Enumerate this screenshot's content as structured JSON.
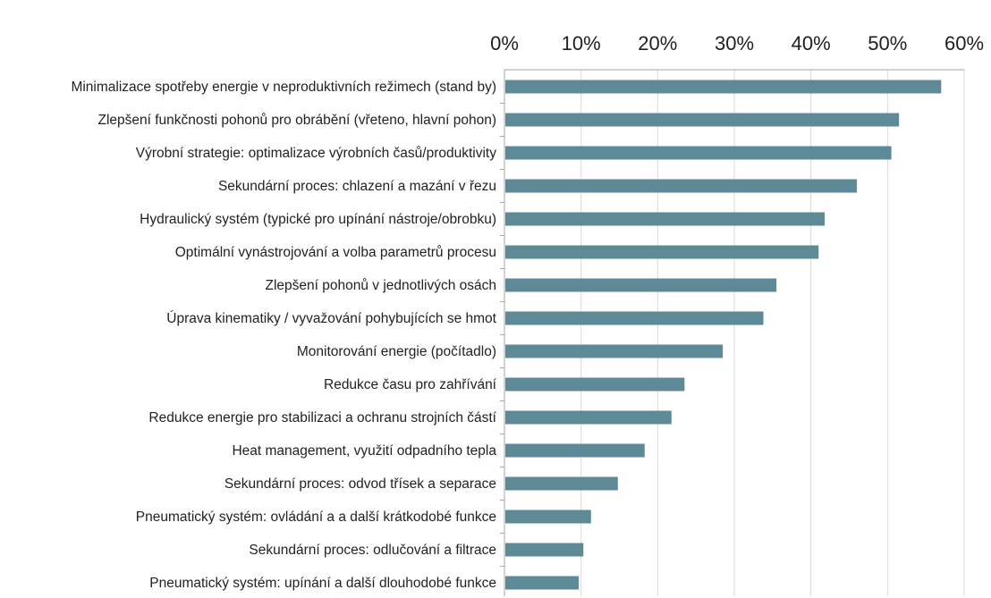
{
  "chart_data": {
    "type": "bar",
    "orientation": "horizontal",
    "title": "",
    "xlabel": "",
    "ylabel": "",
    "xlim": [
      0,
      60
    ],
    "x_ticks": [
      "0%",
      "10%",
      "20%",
      "30%",
      "40%",
      "50%",
      "60%"
    ],
    "x_tick_values": [
      0,
      10,
      20,
      30,
      40,
      50,
      60
    ],
    "x_axis_position": "top",
    "grid": true,
    "legend": "none",
    "categories": [
      "Minimalizace spotřeby energie v neproduktivních režimech (stand by)",
      "Zlepšení funkčnosti pohonů pro obrábění (vřeteno, hlavní pohon)",
      "Výrobní strategie: optimalizace výrobních časů/produktivity",
      "Sekundární proces: chlazení a mazání v řezu",
      "Hydraulický systém (typické pro upínání nástroje/obrobku)",
      "Optimální vynástrojování a volba parametrů procesu",
      "Zlepšení pohonů v jednotlivých osách",
      "Úprava kinematiky / vyvažování pohybujících se hmot",
      "Monitorování energie (počítadlo)",
      "Redukce času pro zahřívání",
      "Redukce energie pro stabilizaci a ochranu strojních částí",
      "Heat management, využití odpadního tepla",
      "Sekundární proces: odvod třísek a separace",
      "Pneumatický systém: ovládání a a další krátkodobé funkce",
      "Sekundární proces: odlučování a filtrace",
      "Pneumatický systém: upínání a další dlouhodobé funkce"
    ],
    "values": [
      57,
      51.5,
      50.5,
      46,
      41.8,
      41,
      35.5,
      33.8,
      28.5,
      23.5,
      21.8,
      18.3,
      14.8,
      11.3,
      10.3,
      9.7
    ],
    "colors": {
      "bar": "#5e8a98",
      "grid": "#d9d9d9",
      "axis": "#a6a6a6"
    }
  }
}
